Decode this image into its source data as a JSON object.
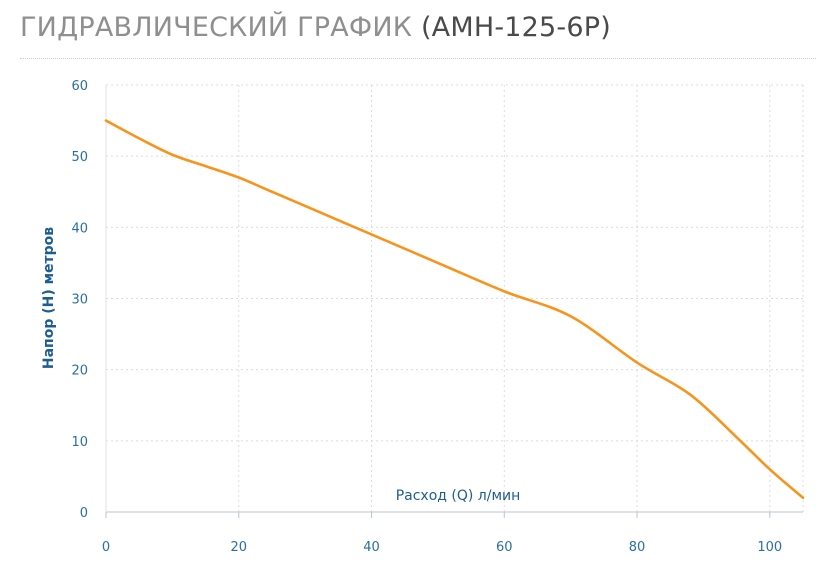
{
  "title": {
    "main": "ГИДРАВЛИЧЕСКИЙ ГРАФИК",
    "model": "(AMH-125-6P)"
  },
  "colors": {
    "curve": "#f7941d",
    "axis_text": "#2a6fa3",
    "grid": "#dcdcdc"
  },
  "chart_data": {
    "type": "line",
    "title": "ГИДРАВЛИЧЕСКИЙ ГРАФИК (AMH-125-6P)",
    "xlabel": "Расход (Q) л/мин",
    "ylabel": "Напор (Н) метров",
    "xlim": [
      0,
      105
    ],
    "ylim": [
      0,
      60
    ],
    "x_ticks": [
      "0",
      "20",
      "40",
      "60",
      "80",
      "100"
    ],
    "y_ticks": [
      "0",
      "10",
      "20",
      "30",
      "40",
      "50",
      "60"
    ],
    "grid": true,
    "legend": "none",
    "series": [
      {
        "x": [
          0,
          5,
          10,
          15,
          20,
          25,
          30,
          40,
          50,
          60,
          70,
          80,
          88,
          95,
          100,
          105
        ],
        "y": [
          55,
          52.5,
          50.2,
          48.6,
          47,
          45,
          43,
          39,
          35,
          31,
          27.5,
          21,
          16.5,
          10.5,
          6,
          2
        ]
      }
    ]
  }
}
